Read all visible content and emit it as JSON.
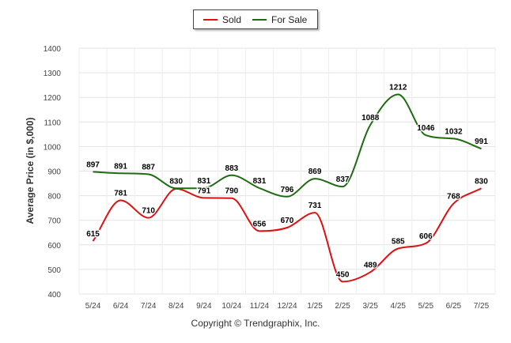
{
  "chart_data": {
    "type": "line",
    "title": "",
    "xlabel": "",
    "ylabel": "Average Price (in $,000)",
    "ylim": [
      400,
      1400
    ],
    "yticks": [
      400,
      500,
      600,
      700,
      800,
      900,
      1000,
      1100,
      1200,
      1300,
      1400
    ],
    "grid": true,
    "legend_position": "top-center",
    "categories": [
      "5/24",
      "6/24",
      "7/24",
      "8/24",
      "9/24",
      "10/24",
      "11/24",
      "12/24",
      "1/25",
      "2/25",
      "3/25",
      "4/25",
      "5/25",
      "6/25",
      "7/25"
    ],
    "series": [
      {
        "name": "Sold",
        "color": "#dd1111",
        "values": [
          615,
          781,
          710,
          828,
          791,
          790,
          656,
          670,
          731,
          450,
          489,
          585,
          606,
          768,
          830
        ]
      },
      {
        "name": "For Sale",
        "color": "#1e6b12",
        "values": [
          897,
          891,
          887,
          830,
          831,
          883,
          831,
          796,
          869,
          837,
          1088,
          1212,
          1046,
          1032,
          991
        ]
      }
    ]
  },
  "legend": {
    "sold_label": "Sold",
    "forsale_label": "For Sale"
  },
  "footer": {
    "copyright": "Copyright © Trendgraphix, Inc."
  }
}
